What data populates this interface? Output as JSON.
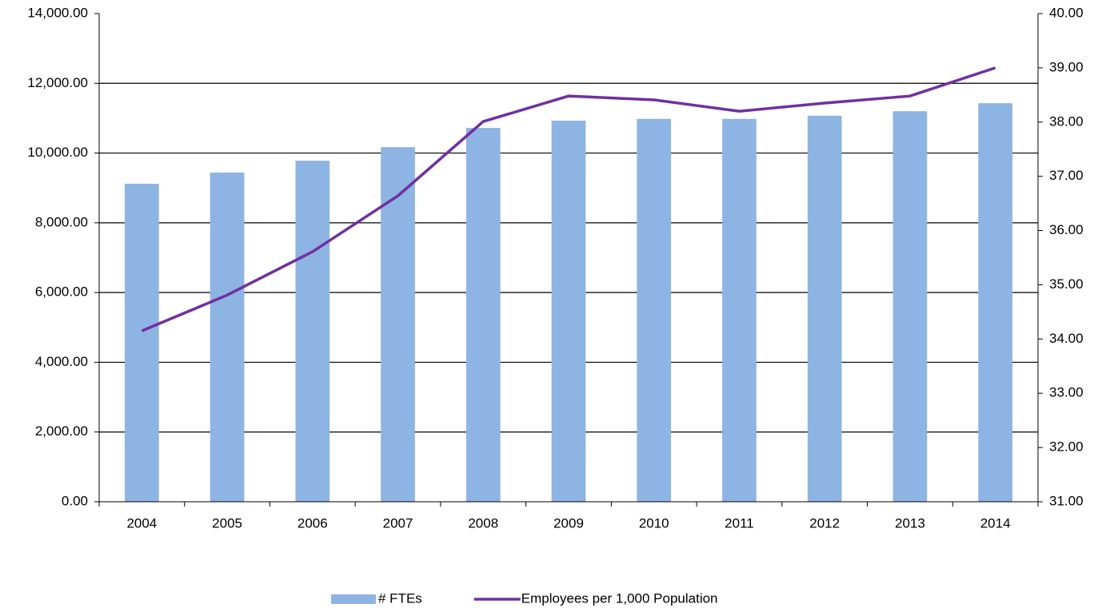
{
  "chart_data": {
    "type": "bar-line",
    "categories": [
      "2004",
      "2005",
      "2006",
      "2007",
      "2008",
      "2009",
      "2010",
      "2011",
      "2012",
      "2013",
      "2014"
    ],
    "series": [
      {
        "name": "# FTEs",
        "type": "bar",
        "color": "#8eb4e3",
        "values": [
          9120,
          9440,
          9780,
          10170,
          10720,
          10930,
          10980,
          10980,
          11070,
          11200,
          11430
        ]
      },
      {
        "name": "Employees per 1,000 Population",
        "type": "line",
        "axis": "y2",
        "color": "#7030a0",
        "values": [
          34.15,
          34.81,
          35.61,
          36.64,
          38.01,
          38.48,
          38.41,
          38.2,
          38.35,
          38.48,
          39.0
        ]
      }
    ],
    "ylim": [
      0,
      14000
    ],
    "yticks": [
      {
        "value": 0,
        "label": "0.00"
      },
      {
        "value": 2000,
        "label": "2,000.00"
      },
      {
        "value": 4000,
        "label": "4,000.00"
      },
      {
        "value": 6000,
        "label": "6,000.00"
      },
      {
        "value": 8000,
        "label": "8,000.00"
      },
      {
        "value": 10000,
        "label": "10,000.00"
      },
      {
        "value": 12000,
        "label": "12,000.00"
      },
      {
        "value": 14000,
        "label": "14,000.00"
      }
    ],
    "y2lim": [
      31,
      40
    ],
    "y2ticks": [
      {
        "value": 31,
        "label": "31.00"
      },
      {
        "value": 32,
        "label": "32.00"
      },
      {
        "value": 33,
        "label": "33.00"
      },
      {
        "value": 34,
        "label": "34.00"
      },
      {
        "value": 35,
        "label": "35.00"
      },
      {
        "value": 36,
        "label": "36.00"
      },
      {
        "value": 37,
        "label": "37.00"
      },
      {
        "value": 38,
        "label": "38.00"
      },
      {
        "value": 39,
        "label": "39.00"
      },
      {
        "value": 40,
        "label": "40.00"
      }
    ],
    "grid": true,
    "legend": "bottom"
  }
}
